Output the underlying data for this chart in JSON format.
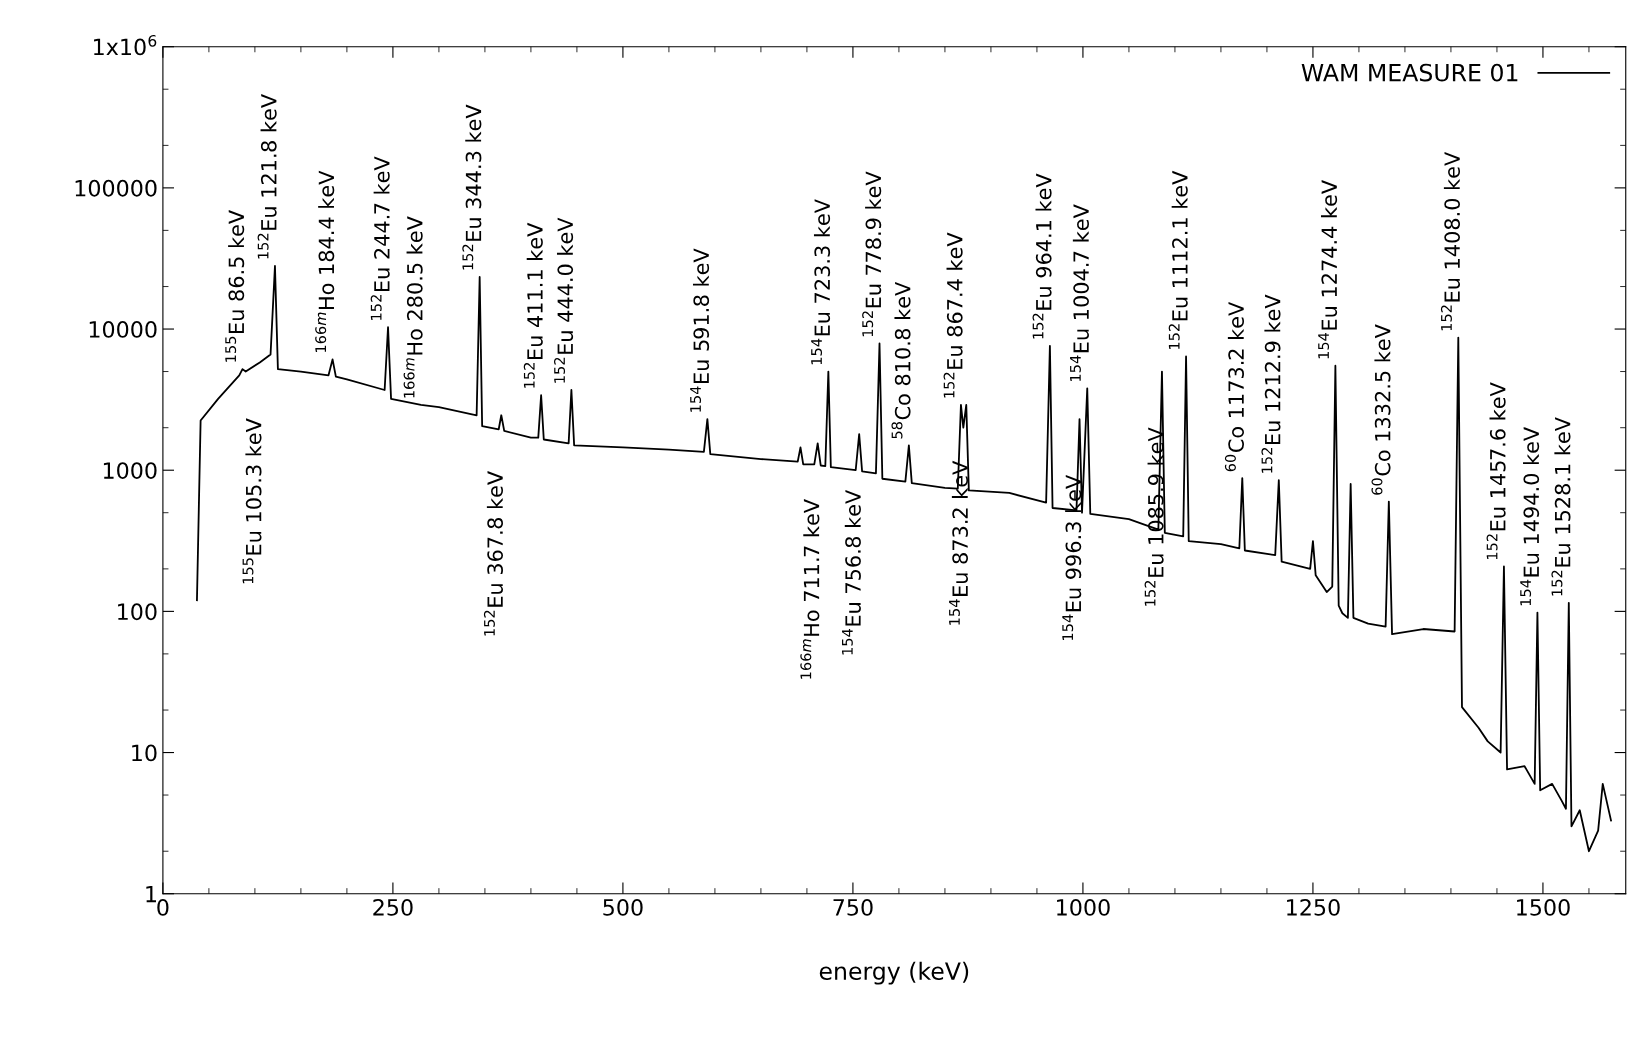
{
  "chart_data": {
    "type": "line",
    "xlabel": "energy (keV)",
    "log": "y",
    "grid": false,
    "legend": "top right",
    "marker": "none",
    "line_style": "solid",
    "xlim": [
      0,
      1590
    ],
    "xticks": [
      0,
      250,
      500,
      750,
      1000,
      1250,
      1500
    ],
    "ylim": [
      1,
      1000000
    ],
    "yticks": [
      1,
      10,
      100,
      1000,
      10000,
      100000,
      {
        "value": 1000000,
        "label": "1x10$^{6}$"
      }
    ],
    "series": [
      {
        "name": "WAM MEASURE 01",
        "color": "#000000",
        "x": [
          37,
          41,
          60,
          83,
          86.5,
          90,
          105.3,
          117,
          121.8,
          125,
          150,
          180,
          184.4,
          188,
          200,
          241,
          244.7,
          248,
          280.5,
          300,
          341,
          344.3,
          347,
          365,
          367.8,
          371,
          400,
          408,
          411.1,
          414,
          441,
          444.0,
          447,
          500,
          550,
          588,
          591.8,
          595,
          650,
          690,
          693,
          696,
          708,
          711.7,
          715,
          720,
          723.3,
          726,
          753,
          756.8,
          760,
          775,
          778.9,
          782,
          807,
          810.8,
          814,
          850,
          864,
          867.4,
          870,
          873.2,
          876,
          920,
          960,
          964.1,
          967,
          993,
          996.3,
          999,
          1004.7,
          1008,
          1050,
          1082,
          1085.9,
          1089,
          1109,
          1112.1,
          1115,
          1150,
          1170,
          1173.2,
          1176,
          1209,
          1212.9,
          1216,
          1247,
          1250,
          1253,
          1265,
          1271,
          1274.4,
          1278,
          1282,
          1288,
          1291,
          1294,
          1310,
          1329,
          1332.5,
          1336,
          1370,
          1404,
          1408.0,
          1412,
          1430,
          1440,
          1454,
          1457.6,
          1461,
          1480,
          1491,
          1494.0,
          1497,
          1510,
          1520,
          1525,
          1528.1,
          1531,
          1540,
          1550,
          1560,
          1565,
          1574
        ],
        "values": [
          120,
          2250,
          3200,
          4700,
          5200,
          5000,
          5800,
          6600,
          28000,
          5200,
          5000,
          4700,
          6100,
          4600,
          4400,
          3700,
          10300,
          3200,
          2900,
          2800,
          2450,
          23400,
          2050,
          1950,
          2450,
          1900,
          1700,
          1700,
          3400,
          1650,
          1550,
          3700,
          1500,
          1450,
          1400,
          1350,
          2300,
          1300,
          1200,
          1150,
          1450,
          1100,
          1100,
          1550,
          1080,
          1070,
          5000,
          1050,
          1000,
          1800,
          980,
          950,
          7900,
          870,
          830,
          1500,
          810,
          750,
          740,
          2900,
          2000,
          2900,
          720,
          690,
          590,
          7600,
          540,
          520,
          2300,
          500,
          3800,
          490,
          450,
          380,
          5000,
          360,
          340,
          6400,
          315,
          300,
          280,
          880,
          270,
          250,
          850,
          225,
          200,
          315,
          180,
          137,
          150,
          5500,
          110,
          97,
          90,
          800,
          90,
          82,
          78,
          600,
          69,
          75,
          72,
          8700,
          21,
          15,
          12,
          10,
          208,
          7.6,
          8,
          6,
          98,
          5.4,
          6,
          4.6,
          4,
          115,
          3,
          3.9,
          2,
          2.8,
          6,
          3.3
        ]
      }
    ],
    "annotations": [
      {
        "text": "$^{155}$Eu 86.5 keV",
        "x": 86.5,
        "y": 5200
      },
      {
        "text": "$^{152}$Eu 121.8 keV",
        "x": 121.8,
        "y": 28000
      },
      {
        "text": "$^{166m}$Ho 184.4 keV",
        "x": 184.4,
        "y": 6100
      },
      {
        "text": "$^{152}$Eu 244.7 keV",
        "x": 244.7,
        "y": 10300
      },
      {
        "text": "$^{152}$Eu 344.3 keV",
        "x": 344.3,
        "y": 23400
      },
      {
        "text": "$^{152}$Eu 367.8 keV",
        "x": 367.8,
        "y": 2450
      },
      {
        "text": "$^{152}$Eu 411.1 keV",
        "x": 411.1,
        "y": 3400
      },
      {
        "text": "$^{152}$Eu 444.0 keV",
        "x": 444.0,
        "y": 3700
      },
      {
        "text": "$^{154}$Eu 591.8 keV",
        "x": 591.8,
        "y": 2300
      },
      {
        "text": "$^{154}$Eu 723.3 keV",
        "x": 723.3,
        "y": 5000
      },
      {
        "text": "$^{152}$Eu 778.9 keV",
        "x": 778.9,
        "y": 7900
      },
      {
        "text": "$^{58}$Co 810.8 keV",
        "x": 810.8,
        "y": 1500
      },
      {
        "text": "$^{152}$Eu 867.4 keV",
        "x": 867.4,
        "y": 2900
      },
      {
        "text": "$^{152}$Eu 964.1 keV",
        "x": 964.1,
        "y": 7600
      },
      {
        "text": "$^{154}$Eu 1004.7 keV",
        "x": 1004.7,
        "y": 3800
      },
      {
        "text": "$^{152}$Eu 1085.9 keV",
        "x": 1085.9,
        "y": 5000
      },
      {
        "text": "$^{152}$Eu 1112.1 keV",
        "x": 1112.1,
        "y": 6400
      },
      {
        "text": "$^{60}$Co 1173.2 keV",
        "x": 1173.2,
        "y": 880
      },
      {
        "text": "$^{152}$Eu 1212.9 keV",
        "x": 1212.9,
        "y": 850
      },
      {
        "text": "$^{154}$Eu 1274.4 keV",
        "x": 1274.4,
        "y": 5500
      },
      {
        "text": "$^{60}$Co 1332.5 keV",
        "x": 1332.5,
        "y": 600
      },
      {
        "text": "$^{152}$Eu 1408.0 keV",
        "x": 1408.0,
        "y": 8700
      },
      {
        "text": "$^{152}$Eu 1457.6 keV",
        "x": 1457.6,
        "y": 208
      },
      {
        "text": "$^{154}$Eu 1494.0 keV",
        "x": 1494.0,
        "y": 98
      },
      {
        "text": "$^{152}$Eu 1528.1 keV",
        "x": 1528.1,
        "y": 115
      },
      {
        "text": "$^{155}$Eu 105.3 keV",
        "x": 105.3,
        "y": 5800
      },
      {
        "text": "$^{166m}$Ho 280.5 keV",
        "x": 280.5,
        "y": 2900
      },
      {
        "text": "$^{166m}$Ho 711.7 keV",
        "x": 711.7,
        "y": 1550
      },
      {
        "text": "$^{154}$Eu 756.8 keV",
        "x": 756.8,
        "y": 1800
      },
      {
        "text": "$^{154}$Eu 873.2 keV",
        "x": 873.2,
        "y": 2900
      },
      {
        "text": "$^{154}$Eu 996.3 keV",
        "x": 996.3,
        "y": 2300
      }
    ]
  }
}
